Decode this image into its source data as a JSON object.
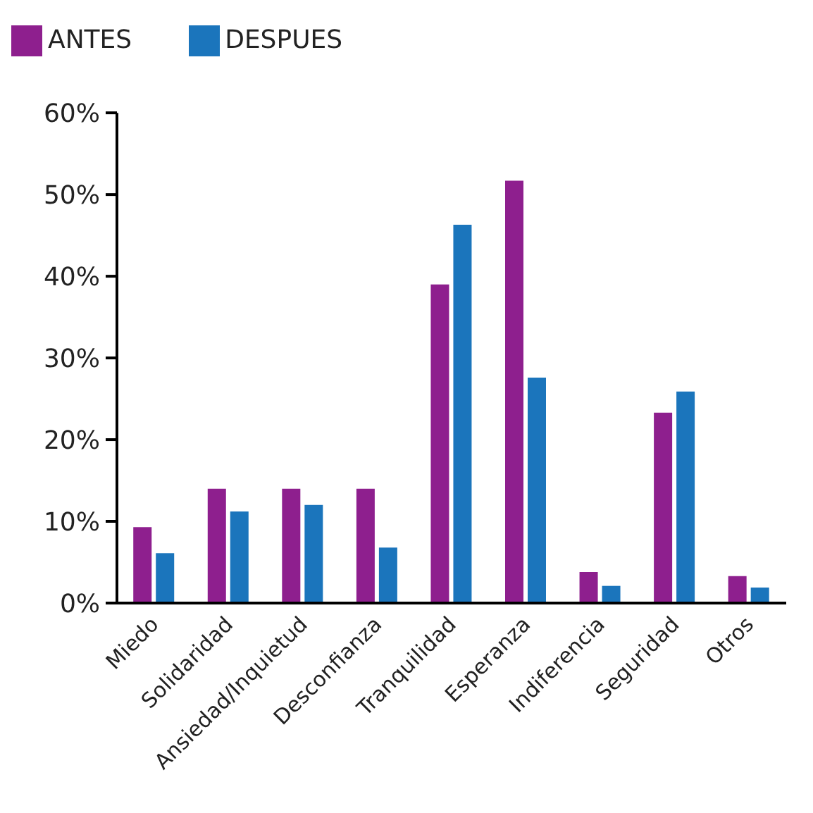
{
  "chart_data": {
    "type": "bar",
    "categories": [
      "Miedo",
      "Solidaridad",
      "Ansiedad/Inquietud",
      "Desconfianza",
      "Tranquilidad",
      "Esperanza",
      "Indiferencia",
      "Seguridad",
      "Otros"
    ],
    "series": [
      {
        "name": "ANTES",
        "color": "#8e1f8e",
        "values": [
          9.3,
          14,
          14,
          14,
          39,
          51.7,
          3.8,
          23.3,
          3.3
        ]
      },
      {
        "name": "DESPUES",
        "color": "#1b75bc",
        "values": [
          6.1,
          11.2,
          12,
          6.8,
          46.3,
          27.6,
          2.1,
          25.9,
          1.9
        ]
      }
    ],
    "ylim": [
      0,
      60
    ],
    "yticks": [
      {
        "value": 0,
        "label": "0%"
      },
      {
        "value": 10,
        "label": "10%"
      },
      {
        "value": 20,
        "label": "20%"
      },
      {
        "value": 30,
        "label": "30%"
      },
      {
        "value": 40,
        "label": "40%"
      },
      {
        "value": 50,
        "label": "50%"
      },
      {
        "value": 60,
        "label": "60%"
      }
    ],
    "grid": false,
    "legend": "top left"
  }
}
